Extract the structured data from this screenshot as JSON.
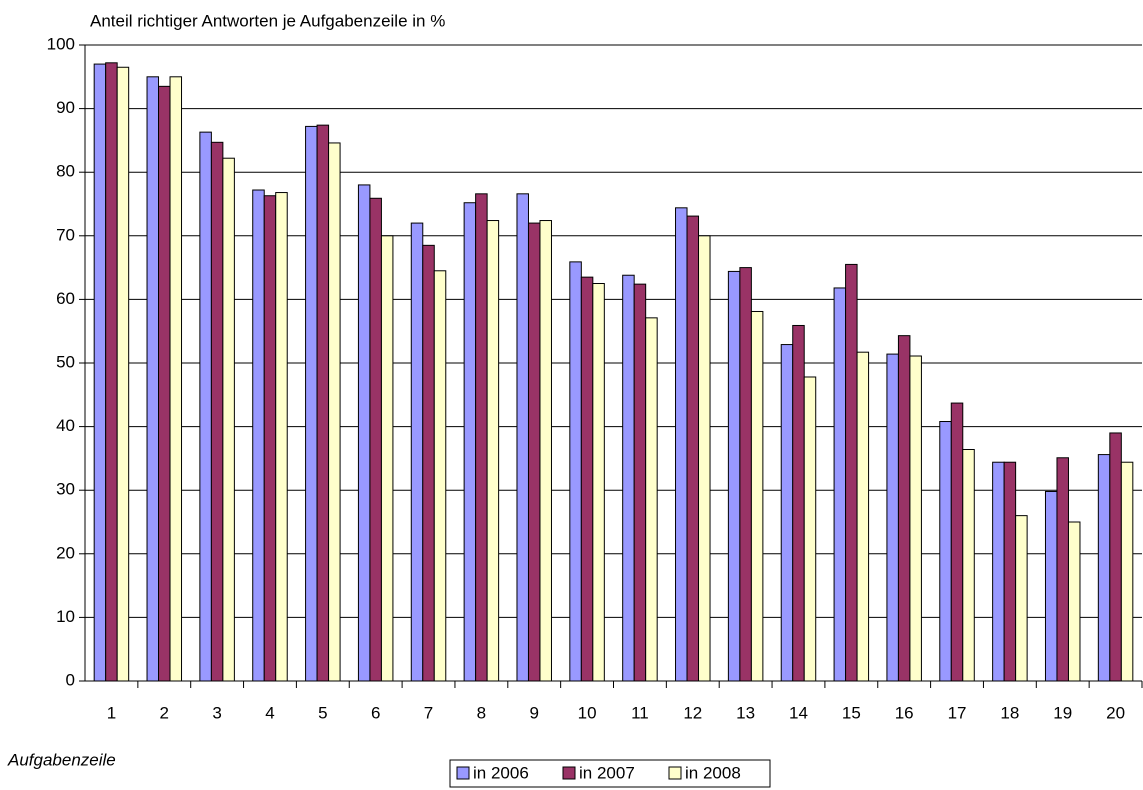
{
  "chart_data": {
    "type": "bar",
    "title": "Anteil richtiger Antworten je Aufgabenzeile in %",
    "x_label": "Aufgabenzeile",
    "categories": [
      "1",
      "2",
      "3",
      "4",
      "5",
      "6",
      "7",
      "8",
      "9",
      "10",
      "11",
      "12",
      "13",
      "14",
      "15",
      "16",
      "17",
      "18",
      "19",
      "20"
    ],
    "series": [
      {
        "name": "in 2006",
        "color": "#9999ff",
        "values": [
          97,
          95,
          86.3,
          77.2,
          87.2,
          78,
          72,
          75.2,
          76.6,
          65.9,
          63.8,
          74.4,
          64.4,
          52.9,
          61.8,
          51.4,
          40.8,
          34.4,
          29.8,
          35.6
        ]
      },
      {
        "name": "in 2007",
        "color": "#993366",
        "values": [
          97.2,
          93.5,
          84.7,
          76.3,
          87.4,
          75.9,
          68.5,
          76.6,
          72,
          63.5,
          62.4,
          73.1,
          65,
          55.9,
          65.5,
          54.3,
          43.7,
          34.4,
          35.1,
          39
        ]
      },
      {
        "name": "in 2008",
        "color": "#ffffcc",
        "values": [
          96.5,
          95,
          82.2,
          76.8,
          84.6,
          70,
          64.5,
          72.4,
          72.4,
          62.5,
          57.1,
          70,
          58.1,
          47.8,
          51.7,
          51.1,
          36.4,
          26,
          25,
          34.4
        ]
      }
    ],
    "ylim": [
      0,
      100
    ],
    "yticks": [
      0,
      10,
      20,
      30,
      40,
      50,
      60,
      70,
      80,
      90,
      100
    ],
    "grid": true,
    "legend": "bottom"
  }
}
